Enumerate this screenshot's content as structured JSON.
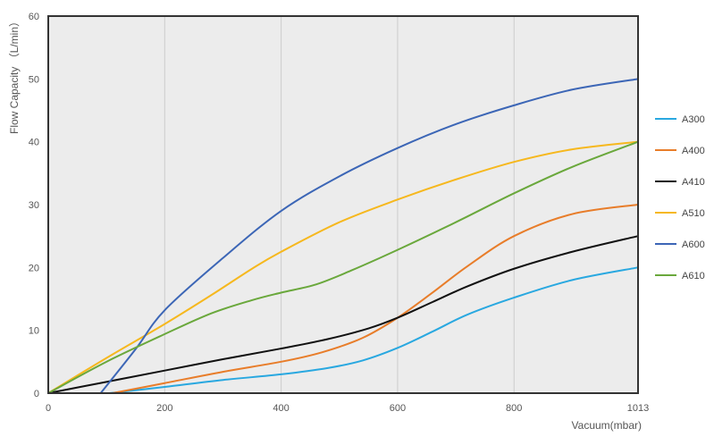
{
  "chart_data": {
    "type": "line",
    "xlabel": "Vacuum(mbar)",
    "ylabel": "Flow Capacity （L/min）",
    "xlim": [
      0,
      1013
    ],
    "ylim": [
      0,
      60
    ],
    "x_ticks": [
      0,
      200,
      400,
      600,
      800,
      1013
    ],
    "x_tick_labels": [
      "0",
      "200",
      "400",
      "600",
      "800",
      "1013"
    ],
    "y_ticks": [
      0,
      10,
      20,
      30,
      40,
      50,
      60
    ],
    "y_tick_labels": [
      "0",
      "10",
      "20",
      "30",
      "40",
      "50",
      "60"
    ],
    "grid": "vertical",
    "legend_position": "right",
    "series": [
      {
        "name": "A300",
        "color": "#29a8e0",
        "points": [
          [
            105,
            0
          ],
          [
            200,
            1
          ],
          [
            300,
            2.1
          ],
          [
            400,
            3
          ],
          [
            480,
            4
          ],
          [
            540,
            5.2
          ],
          [
            600,
            7.2
          ],
          [
            660,
            9.8
          ],
          [
            720,
            12.5
          ],
          [
            800,
            15.2
          ],
          [
            900,
            18
          ],
          [
            1013,
            20
          ]
        ]
      },
      {
        "name": "A400",
        "color": "#e87d2a",
        "points": [
          [
            110,
            0
          ],
          [
            200,
            1.6
          ],
          [
            300,
            3.4
          ],
          [
            400,
            5
          ],
          [
            470,
            6.5
          ],
          [
            540,
            8.8
          ],
          [
            600,
            12
          ],
          [
            660,
            16
          ],
          [
            720,
            20.2
          ],
          [
            800,
            25
          ],
          [
            900,
            28.5
          ],
          [
            1013,
            30
          ]
        ]
      },
      {
        "name": "A410",
        "color": "#111111",
        "points": [
          [
            0,
            0
          ],
          [
            100,
            1.8
          ],
          [
            200,
            3.6
          ],
          [
            300,
            5.4
          ],
          [
            400,
            7.1
          ],
          [
            480,
            8.6
          ],
          [
            550,
            10.3
          ],
          [
            600,
            12
          ],
          [
            660,
            14.5
          ],
          [
            720,
            17
          ],
          [
            800,
            19.8
          ],
          [
            900,
            22.5
          ],
          [
            1013,
            25
          ]
        ]
      },
      {
        "name": "A510",
        "color": "#f6b81e",
        "points": [
          [
            0,
            0
          ],
          [
            100,
            5.6
          ],
          [
            200,
            11
          ],
          [
            280,
            15.6
          ],
          [
            350,
            19.8
          ],
          [
            400,
            22.5
          ],
          [
            500,
            27.2
          ],
          [
            600,
            30.8
          ],
          [
            700,
            34
          ],
          [
            800,
            36.8
          ],
          [
            900,
            38.8
          ],
          [
            1013,
            40
          ]
        ]
      },
      {
        "name": "A600",
        "color": "#3c66b6",
        "points": [
          [
            90,
            0
          ],
          [
            150,
            7
          ],
          [
            200,
            13.2
          ],
          [
            300,
            21.5
          ],
          [
            400,
            29
          ],
          [
            500,
            34.5
          ],
          [
            600,
            39
          ],
          [
            700,
            42.8
          ],
          [
            800,
            45.8
          ],
          [
            900,
            48.3
          ],
          [
            1013,
            50
          ]
        ]
      },
      {
        "name": "A610",
        "color": "#6aa83c",
        "points": [
          [
            0,
            0
          ],
          [
            100,
            5
          ],
          [
            200,
            9.4
          ],
          [
            280,
            12.7
          ],
          [
            350,
            14.8
          ],
          [
            400,
            16
          ],
          [
            460,
            17.3
          ],
          [
            520,
            19.5
          ],
          [
            600,
            22.8
          ],
          [
            700,
            27.2
          ],
          [
            800,
            31.8
          ],
          [
            900,
            36
          ],
          [
            1013,
            40
          ]
        ]
      }
    ]
  }
}
